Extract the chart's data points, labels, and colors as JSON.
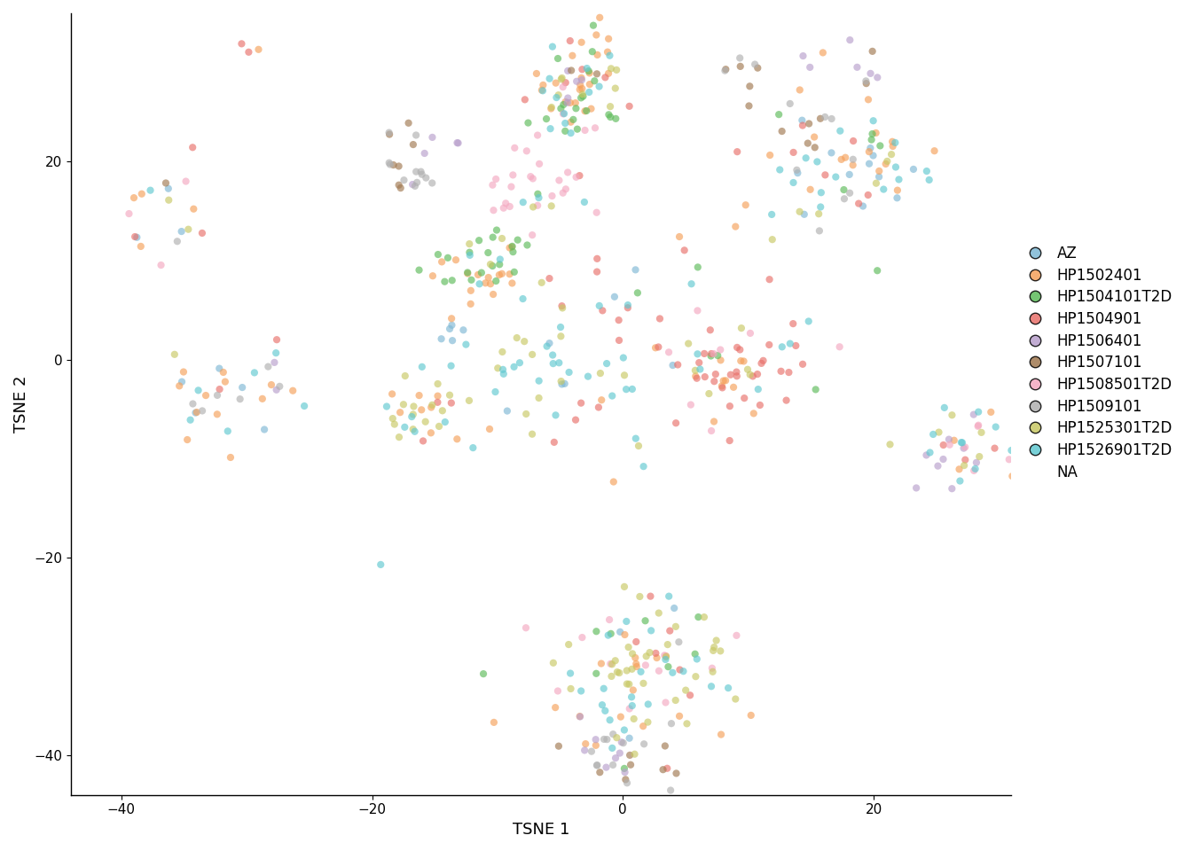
{
  "donors": [
    "AZ",
    "HP1502401",
    "HP1504101T2D",
    "HP1504901",
    "HP1506401",
    "HP1507101",
    "HP1508501T2D",
    "HP1509101",
    "HP1525301T2D",
    "HP1526901T2D",
    "NA"
  ],
  "colors": {
    "AZ": "#7EB8D4",
    "HP1502401": "#F5A05A",
    "HP1504101T2D": "#5DBB5A",
    "HP1504901": "#E8706A",
    "HP1506401": "#B89FCC",
    "HP1507101": "#A07850",
    "HP1508501T2D": "#F4A8C0",
    "HP1509101": "#B0B0B0",
    "HP1525301T2D": "#C8C864",
    "HP1526901T2D": "#60C8D0",
    "NA": "#888888"
  },
  "xlabel": "TSNE 1",
  "ylabel": "TSNE 2",
  "xlim": [
    -44,
    31
  ],
  "ylim": [
    -44,
    35
  ],
  "xticks": [
    -40,
    -20,
    0,
    20
  ],
  "yticks": [
    -40,
    -20,
    0,
    20
  ],
  "alpha": 0.65,
  "background_color": "#ffffff",
  "legend_fontsize": 12,
  "axis_fontsize": 13,
  "tick_fontsize": 11
}
